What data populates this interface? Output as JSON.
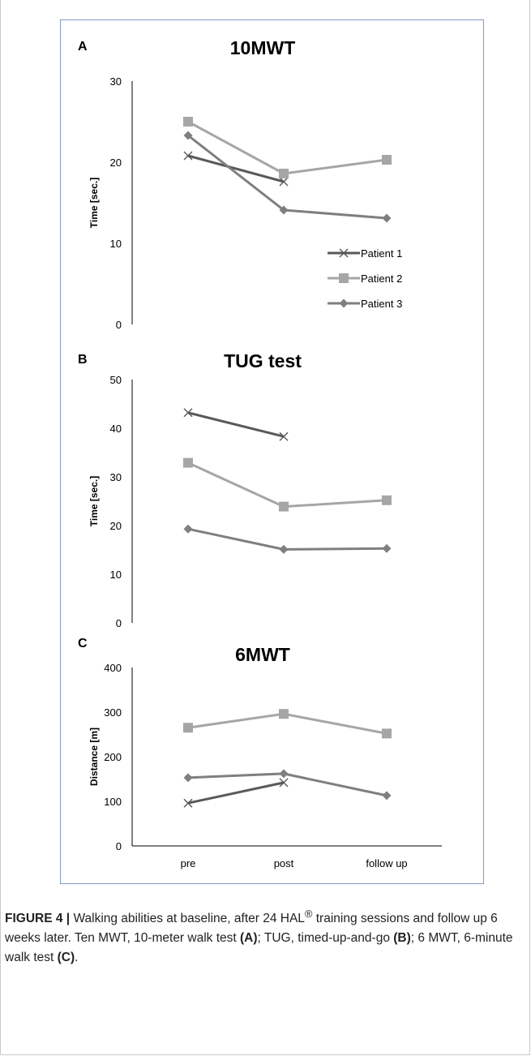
{
  "chart_data": [
    {
      "type": "line",
      "panel": "A",
      "title": "10MWT",
      "ylabel": "Time [sec.]",
      "ylim": [
        0,
        30
      ],
      "yticks": [
        0,
        10,
        20,
        30
      ],
      "categories": [
        "pre",
        "post",
        "follow up"
      ],
      "series": [
        {
          "name": "Patient 1",
          "values": [
            20.8,
            17.6,
            null
          ],
          "color": "#595959",
          "marker": "x"
        },
        {
          "name": "Patient 2",
          "values": [
            25.0,
            18.6,
            20.3
          ],
          "color": "#a6a6a6",
          "marker": "square"
        },
        {
          "name": "Patient 3",
          "values": [
            23.3,
            14.1,
            13.1
          ],
          "color": "#7f7f7f",
          "marker": "diamond"
        }
      ],
      "legend": "right"
    },
    {
      "type": "line",
      "panel": "B",
      "title": "TUG test",
      "ylabel": "Time [sec.]",
      "ylim": [
        0,
        50
      ],
      "yticks": [
        0,
        10,
        20,
        30,
        40,
        50
      ],
      "categories": [
        "pre",
        "post",
        "follow up"
      ],
      "series": [
        {
          "name": "Patient 1",
          "values": [
            43.2,
            38.3,
            null
          ],
          "color": "#595959",
          "marker": "x"
        },
        {
          "name": "Patient 2",
          "values": [
            32.9,
            23.9,
            25.2
          ],
          "color": "#a6a6a6",
          "marker": "square"
        },
        {
          "name": "Patient 3",
          "values": [
            19.3,
            15.1,
            15.3
          ],
          "color": "#7f7f7f",
          "marker": "diamond"
        }
      ]
    },
    {
      "type": "line",
      "panel": "C",
      "title": "6MWT",
      "ylabel": "Distance [m]",
      "ylim": [
        0,
        400
      ],
      "yticks": [
        0,
        100,
        200,
        300,
        400
      ],
      "categories": [
        "pre",
        "post",
        "follow up"
      ],
      "xticks": [
        "pre",
        "post",
        "follow up"
      ],
      "series": [
        {
          "name": "Patient 1",
          "values": [
            96,
            142,
            null
          ],
          "color": "#595959",
          "marker": "x"
        },
        {
          "name": "Patient 2",
          "values": [
            265,
            296,
            252
          ],
          "color": "#a6a6a6",
          "marker": "square"
        },
        {
          "name": "Patient 3",
          "values": [
            153,
            162,
            113
          ],
          "color": "#7f7f7f",
          "marker": "diamond"
        }
      ]
    }
  ],
  "caption": {
    "label": "FIGURE 4 |",
    "t1": " Walking abilities at baseline, after 24 HAL",
    "sup": "®",
    "t2": " training sessions and follow up 6 weeks later. Ten MWT, 10-meter walk test ",
    "a": "(A)",
    "t3": "; TUG, timed-up-and-go ",
    "b": "(B)",
    "t4": "; 6 MWT, 6-minute walk test ",
    "c": "(C)",
    "t5": "."
  }
}
